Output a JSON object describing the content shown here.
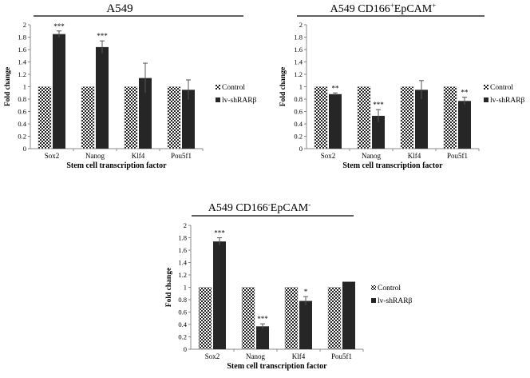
{
  "colors": {
    "control_fill": "#ffffff",
    "control_pattern": "#222222",
    "treatment_fill": "#262626"
  },
  "chart_data": [
    {
      "type": "bar",
      "title": "A549",
      "title_parts": [
        {
          "text": "A549",
          "sup": false
        }
      ],
      "xlabel": "Stem cell transcription factor",
      "ylabel": "Fold change",
      "categories": [
        "Sox2",
        "Nanog",
        "Klf4",
        "Pou5f1"
      ],
      "ylim": [
        0,
        2
      ],
      "yticks": [
        "0",
        "0.2",
        "0.4",
        "0.6",
        "0.8",
        "1",
        "1.2",
        "1.4",
        "1.6",
        "1.8",
        "2"
      ],
      "grid": false,
      "legend_position": "right",
      "series": [
        {
          "name": "Control",
          "values": [
            1,
            1,
            1,
            1
          ],
          "errors": [
            0,
            0,
            0,
            0
          ],
          "sig": [
            "",
            "",
            "",
            ""
          ]
        },
        {
          "name": "lv-shRARβ",
          "values": [
            1.85,
            1.64,
            1.14,
            0.95
          ],
          "errors": [
            0.05,
            0.1,
            0.24,
            0.16
          ],
          "sig": [
            "***",
            "***",
            "",
            ""
          ]
        }
      ]
    },
    {
      "type": "bar",
      "title": "A549 CD166+EpCAM+",
      "title_parts": [
        {
          "text": "A549 CD166",
          "sup": false
        },
        {
          "text": "+",
          "sup": true
        },
        {
          "text": "EpCAM",
          "sup": false
        },
        {
          "text": "+",
          "sup": true
        }
      ],
      "xlabel": "Stem cell transcription factor",
      "ylabel": "Fold change",
      "categories": [
        "Sox2",
        "Nanog",
        "Klf4",
        "Pou5f1"
      ],
      "ylim": [
        0,
        2
      ],
      "yticks": [
        "0",
        "0.2",
        "0.4",
        "0.6",
        "0.8",
        "1",
        "1.2",
        "1.4",
        "1.6",
        "1.8",
        "2"
      ],
      "grid": false,
      "legend_position": "right",
      "series": [
        {
          "name": "Control",
          "values": [
            1,
            1,
            1,
            1
          ],
          "errors": [
            0,
            0,
            0,
            0
          ],
          "sig": [
            "",
            "",
            "",
            ""
          ]
        },
        {
          "name": "lv-shRARβ",
          "values": [
            0.88,
            0.53,
            0.95,
            0.77
          ],
          "errors": [
            0.02,
            0.1,
            0.15,
            0.06
          ],
          "sig": [
            "**",
            "***",
            "",
            "**"
          ]
        }
      ]
    },
    {
      "type": "bar",
      "title": "A549 CD166-EpCAM-",
      "title_parts": [
        {
          "text": "A549 CD166",
          "sup": false
        },
        {
          "text": "-",
          "sup": true
        },
        {
          "text": "EpCAM",
          "sup": false
        },
        {
          "text": "-",
          "sup": true
        }
      ],
      "xlabel": "Stem cell transcription factor",
      "ylabel": "Fold change",
      "categories": [
        "Sox2",
        "Nanog",
        "Klf4",
        "Pou5f1"
      ],
      "ylim": [
        0,
        2
      ],
      "yticks": [
        "0",
        "0.2",
        "0.4",
        "0.6",
        "0.8",
        "1",
        "1.2",
        "1.4",
        "1.6",
        "1.8",
        "2"
      ],
      "grid": false,
      "legend_position": "right",
      "series": [
        {
          "name": "Control",
          "values": [
            1,
            1,
            1,
            1
          ],
          "errors": [
            0,
            0,
            0,
            0
          ],
          "sig": [
            "",
            "",
            "",
            ""
          ]
        },
        {
          "name": "lv-shRARβ",
          "values": [
            1.74,
            0.37,
            0.78,
            1.09
          ],
          "errors": [
            0.06,
            0.04,
            0.07,
            0.0
          ],
          "sig": [
            "***",
            "***",
            "*",
            ""
          ]
        }
      ]
    }
  ]
}
